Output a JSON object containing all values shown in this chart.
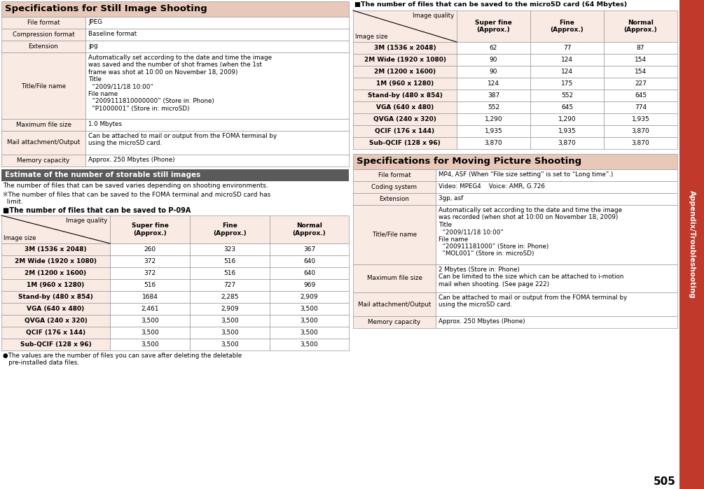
{
  "bg_color": "#ffffff",
  "header_pink": "#e8c8b8",
  "header_gray": "#5a5a5a",
  "cell_light": "#faeae4",
  "cell_white": "#ffffff",
  "sidebar_color": "#c0392b",
  "sidebar_text": "Appendix/Troubleshooting",
  "page_number": "505",
  "still_title": "Specifications for Still Image Shooting",
  "still_specs": [
    [
      "File format",
      "JPEG"
    ],
    [
      "Compression format",
      "Baseline format"
    ],
    [
      "Extension",
      "jpg"
    ],
    [
      "Title/File name",
      "Automatically set according to the date and time the image\nwas saved and the number of shot frames (when the 1st\nframe was shot at 10:00 on November 18, 2009)\nTitle\n  “2009/11/18 10:00”\nFile name\n  “2009111810000000” (Store in: Phone)\n  “P1000001” (Store in: microSD)"
    ],
    [
      "Maximum file size",
      "1.0 Mbytes"
    ],
    [
      "Mail attachment/Output",
      "Can be attached to mail or output from the FOMA terminal by\nusing the microSD card."
    ],
    [
      "Memory capacity",
      "Approx. 250 Mbytes (Phone)"
    ]
  ],
  "still_row_heights": [
    17,
    17,
    17,
    95,
    17,
    34,
    17
  ],
  "estimate_title": "Estimate of the number of storable still images",
  "estimate_note1": "The number of files that can be saved varies depending on shooting environments.",
  "estimate_note2": "※The number of files that can be saved to the FOMA terminal and microSD card has\n  limit.",
  "phone_table_title": "■The number of files that can be saved to P-09A",
  "phone_table_rows": [
    [
      "3M (1536 x 2048)",
      "260",
      "323",
      "367"
    ],
    [
      "2M Wide (1920 x 1080)",
      "372",
      "516",
      "640"
    ],
    [
      "2M (1200 x 1600)",
      "372",
      "516",
      "640"
    ],
    [
      "1M (960 x 1280)",
      "516",
      "727",
      "969"
    ],
    [
      "Stand-by (480 x 854)",
      "1684",
      "2,285",
      "2,909"
    ],
    [
      "VGA (640 x 480)",
      "2,461",
      "2,909",
      "3,500"
    ],
    [
      "QVGA (240 x 320)",
      "3,500",
      "3,500",
      "3,500"
    ],
    [
      "QCIF (176 x 144)",
      "3,500",
      "3,500",
      "3,500"
    ],
    [
      "Sub-QCIF (128 x 96)",
      "3,500",
      "3,500",
      "3,500"
    ]
  ],
  "phone_table_note": "●The values are the number of files you can save after deleting the deletable\n   pre-installed data files.",
  "microsd_table_title": "■The number of files that can be saved to the microSD card (64 Mbytes)",
  "microsd_table_rows": [
    [
      "3M (1536 x 2048)",
      "62",
      "77",
      "87"
    ],
    [
      "2M Wide (1920 x 1080)",
      "90",
      "124",
      "154"
    ],
    [
      "2M (1200 x 1600)",
      "90",
      "124",
      "154"
    ],
    [
      "1M (960 x 1280)",
      "124",
      "175",
      "227"
    ],
    [
      "Stand-by (480 x 854)",
      "387",
      "552",
      "645"
    ],
    [
      "VGA (640 x 480)",
      "552",
      "645",
      "774"
    ],
    [
      "QVGA (240 x 320)",
      "1,290",
      "1,290",
      "1,935"
    ],
    [
      "QCIF (176 x 144)",
      "1,935",
      "1,935",
      "3,870"
    ],
    [
      "Sub-QCIF (128 x 96)",
      "3,870",
      "3,870",
      "3,870"
    ]
  ],
  "moving_title": "Specifications for Moving Picture Shooting",
  "moving_specs": [
    [
      "File format",
      "MP4, ASF (When “File size setting” is set to “Long time”.)"
    ],
    [
      "Coding system",
      "Video: MPEG4    Voice: AMR, G.726"
    ],
    [
      "Extension",
      "3gp, asf"
    ],
    [
      "Title/File name",
      "Automatically set according to the date and time the image\nwas recorded (when shot at 10:00 on November 18, 2009)\nTitle\n  “2009/11/18 10:00”\nFile name\n  “200911181000” (Store in: Phone)\n  “MOL001” (Store in: microSD)"
    ],
    [
      "Maximum file size",
      "2 Mbytes (Store in: Phone)\nCan be limited to the size which can be attached to i-motion\nmail when shooting. (See page 222)"
    ],
    [
      "Mail attachment/Output",
      "Can be attached to mail or output from the FOMA terminal by\nusing the microSD card."
    ],
    [
      "Memory capacity",
      "Approx. 250 Mbytes (Phone)"
    ]
  ],
  "moving_row_heights": [
    17,
    17,
    17,
    85,
    40,
    34,
    17
  ]
}
